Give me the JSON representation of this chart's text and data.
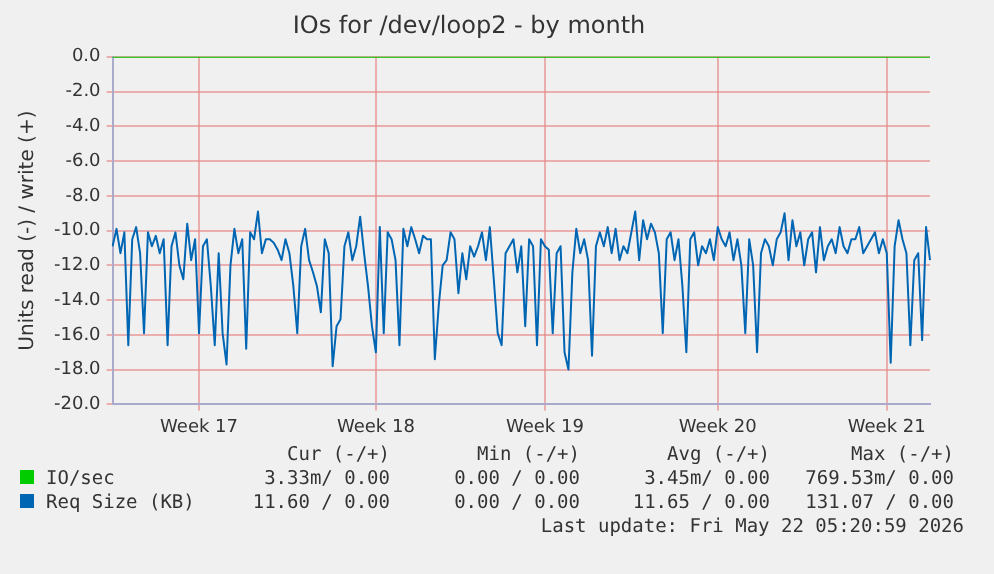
{
  "chart_data": {
    "type": "line",
    "title": "IOs for /dev/loop2 - by month",
    "ylabel": "Units read (-) / write (+)",
    "categories": [
      null,
      null,
      null,
      null,
      null,
      null,
      null,
      null,
      null,
      null,
      null,
      null,
      null,
      null,
      null,
      null,
      null,
      null,
      null,
      null,
      null,
      null,
      "Week 17",
      null,
      null,
      null,
      null,
      null,
      null,
      null,
      null,
      null,
      null,
      null,
      null,
      null,
      null,
      null,
      null,
      null,
      null,
      null,
      null,
      null,
      null,
      null,
      null,
      null,
      null,
      null,
      null,
      null,
      null,
      null,
      null,
      null,
      null,
      null,
      null,
      null,
      null,
      null,
      null,
      null,
      null,
      null,
      null,
      "Week 18",
      null,
      null,
      null,
      null,
      null,
      null,
      null,
      null,
      null,
      null,
      null,
      null,
      null,
      null,
      null,
      null,
      null,
      null,
      null,
      null,
      null,
      null,
      null,
      null,
      null,
      null,
      null,
      null,
      null,
      null,
      null,
      null,
      null,
      null,
      null,
      null,
      null,
      null,
      null,
      null,
      null,
      null,
      "Week 19",
      null,
      null,
      null,
      null,
      null,
      null,
      null,
      null,
      null,
      null,
      null,
      null,
      null,
      null,
      null,
      null,
      null,
      null,
      null,
      null,
      null,
      null,
      null,
      null,
      null,
      null,
      null,
      null,
      null,
      null,
      null,
      null,
      null,
      null,
      null,
      null,
      null,
      null,
      null,
      null,
      null,
      null,
      null,
      "Week 20",
      null,
      null,
      null,
      null,
      null,
      null,
      null,
      null,
      null,
      null,
      null,
      null,
      null,
      null,
      null,
      null,
      null,
      null,
      null,
      null,
      null,
      null,
      null,
      null,
      null,
      null,
      null,
      null,
      null,
      null,
      null,
      null,
      null,
      null,
      null,
      null,
      null,
      null,
      null,
      null,
      null,
      null,
      "Week 21",
      null,
      null,
      null,
      null,
      null,
      null,
      null,
      null,
      null,
      null,
      null
    ],
    "ylim": [
      -20,
      0
    ],
    "yticks": [
      {
        "value": -20,
        "label": "-20.0"
      },
      {
        "value": -18,
        "label": "-18.0"
      },
      {
        "value": -16,
        "label": "-16.0"
      },
      {
        "value": -14,
        "label": "-14.0"
      },
      {
        "value": -12,
        "label": "-12.0"
      },
      {
        "value": -10,
        "label": "-10.0"
      },
      {
        "value": -8,
        "label": "-8.0"
      },
      {
        "value": -6,
        "label": "-6.0"
      },
      {
        "value": -4,
        "label": "-4.0"
      },
      {
        "value": -2,
        "label": "-2.0"
      },
      {
        "value": 0,
        "label": "0.0"
      }
    ],
    "grid": true,
    "legend": "bottom",
    "marker": "none",
    "line_style": "solid",
    "series": [
      {
        "name": "IO/sec",
        "color": "#00cc00",
        "values": [
          0,
          0,
          0,
          0,
          0,
          0,
          0,
          0,
          0,
          0,
          0,
          0,
          0,
          0,
          0,
          0,
          0,
          0,
          0,
          0,
          0,
          0,
          0,
          0,
          0,
          0,
          0,
          0,
          0,
          0,
          0,
          0,
          0,
          0,
          0,
          0,
          0,
          0,
          0,
          0,
          0,
          0,
          0,
          0,
          0,
          0,
          0,
          0,
          0,
          0,
          0,
          0,
          0,
          0,
          0,
          0,
          0,
          0,
          0,
          0,
          0,
          0,
          0,
          0,
          0,
          0,
          0,
          0,
          0,
          0,
          0,
          0,
          0,
          0,
          0,
          0,
          0,
          0,
          0,
          0,
          0,
          0,
          0,
          0,
          0,
          0,
          0,
          0,
          0,
          0,
          0,
          0,
          0,
          0,
          0,
          0,
          0,
          0,
          0,
          0,
          0,
          0,
          0,
          0,
          0,
          0,
          0,
          0,
          0,
          0,
          0,
          0,
          0,
          0,
          0,
          0,
          0,
          0,
          0,
          0,
          0,
          0,
          0,
          0,
          0,
          0,
          0,
          0,
          0,
          0,
          0,
          0,
          0,
          0,
          0,
          0,
          0,
          0,
          0,
          0,
          0,
          0,
          0,
          0,
          0,
          0,
          0,
          0,
          0,
          0,
          0,
          0,
          0,
          0,
          0,
          0,
          0,
          0,
          0,
          0,
          0,
          0,
          0,
          0,
          0,
          0,
          0,
          0,
          0,
          0,
          0,
          0,
          0,
          0,
          0,
          0,
          0,
          0,
          0,
          0,
          0,
          0,
          0,
          0,
          0,
          0,
          0,
          0,
          0,
          0,
          0,
          0,
          0,
          0,
          0,
          0,
          0,
          0,
          0,
          0,
          0,
          0,
          0,
          0,
          0,
          0,
          0,
          0,
          0
        ]
      },
      {
        "name": "Req Size (KB)",
        "color": "#0066b3",
        "values": [
          -10.9,
          -9.9,
          -11.3,
          -10.1,
          -16.6,
          -10.5,
          -9.8,
          -11.3,
          -15.9,
          -10.1,
          -10.9,
          -10.3,
          -11.3,
          -10.5,
          -16.6,
          -10.9,
          -10.1,
          -12.0,
          -12.8,
          -9.6,
          -11.7,
          -10.5,
          -15.9,
          -10.9,
          -10.5,
          -13.2,
          -16.6,
          -11.3,
          -15.9,
          -17.7,
          -12.0,
          -9.9,
          -11.3,
          -10.5,
          -16.8,
          -10.1,
          -10.5,
          -8.9,
          -11.3,
          -10.5,
          -10.5,
          -10.7,
          -11.1,
          -11.7,
          -10.5,
          -11.3,
          -13.2,
          -15.9,
          -10.9,
          -9.9,
          -11.7,
          -12.4,
          -13.2,
          -14.7,
          -10.5,
          -11.3,
          -17.8,
          -15.5,
          -15.1,
          -10.9,
          -10.1,
          -11.7,
          -10.9,
          -9.2,
          -11.3,
          -13.2,
          -15.5,
          -17.0,
          -9.8,
          -15.9,
          -10.1,
          -10.5,
          -11.7,
          -16.6,
          -9.9,
          -10.9,
          -9.8,
          -10.5,
          -11.3,
          -10.3,
          -10.5,
          -10.5,
          -17.4,
          -14.3,
          -12.0,
          -11.7,
          -10.1,
          -10.5,
          -13.6,
          -11.3,
          -12.8,
          -10.9,
          -11.5,
          -10.9,
          -10.1,
          -11.7,
          -9.8,
          -12.8,
          -15.9,
          -16.6,
          -11.3,
          -10.9,
          -10.5,
          -12.4,
          -10.9,
          -15.5,
          -10.5,
          -10.9,
          -16.6,
          -10.5,
          -10.9,
          -11.1,
          -15.9,
          -11.3,
          -10.9,
          -17.0,
          -18.0,
          -12.4,
          -9.9,
          -11.3,
          -10.5,
          -11.7,
          -17.2,
          -10.9,
          -10.1,
          -10.9,
          -9.8,
          -11.3,
          -9.9,
          -11.7,
          -10.9,
          -11.3,
          -10.1,
          -8.9,
          -11.7,
          -9.4,
          -10.5,
          -9.6,
          -10.1,
          -11.3,
          -15.9,
          -10.5,
          -10.1,
          -11.7,
          -10.5,
          -13.2,
          -17.0,
          -10.5,
          -10.1,
          -12.0,
          -10.9,
          -11.3,
          -10.5,
          -11.7,
          -9.8,
          -10.5,
          -10.9,
          -10.1,
          -11.7,
          -10.5,
          -12.0,
          -15.9,
          -10.5,
          -12.0,
          -17.0,
          -11.3,
          -10.5,
          -10.9,
          -12.0,
          -10.5,
          -10.1,
          -9.0,
          -11.7,
          -9.4,
          -10.9,
          -10.1,
          -12.0,
          -10.5,
          -10.1,
          -12.4,
          -9.8,
          -11.7,
          -10.9,
          -10.5,
          -11.3,
          -9.8,
          -10.9,
          -11.3,
          -10.5,
          -10.5,
          -9.8,
          -11.3,
          -10.9,
          -10.5,
          -10.1,
          -11.3,
          -10.5,
          -11.3,
          -17.6,
          -10.9,
          -9.4,
          -10.5,
          -11.3,
          -16.6,
          -11.7,
          -11.3,
          -16.3,
          -9.8,
          -11.7
        ]
      }
    ],
    "annotations": [
      "Cur (-/+)",
      "Min (-/+)",
      "Avg (-/+)",
      "Max (-/+)",
      "3.33m/ 0.00",
      "0.00 / 0.00",
      "3.45m/ 0.00",
      "769.53m/ 0.00",
      "11.60 / 0.00",
      "0.00 / 0.00",
      "11.65 / 0.00",
      "131.07 / 0.00",
      "Last update: Fri May 22 05:20:59 2026"
    ]
  }
}
